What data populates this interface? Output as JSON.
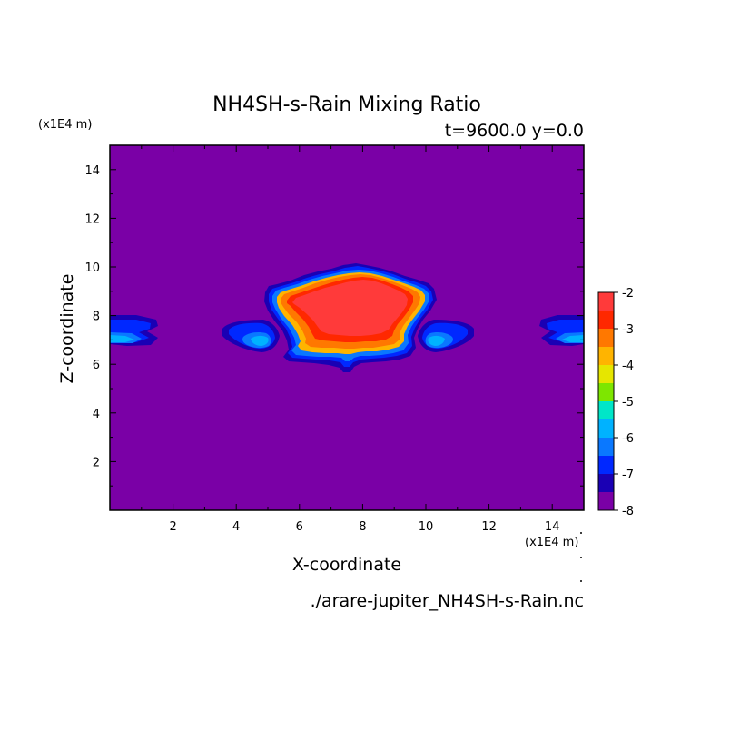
{
  "title": "NH4SH-s-Rain Mixing Ratio",
  "subtitle": "t=9600.0 y=0.0",
  "xlabel": "X-coordinate",
  "ylabel": "Z-coordinate",
  "x_multiplier": "(x1E4 m)",
  "y_multiplier": "(x1E4 m)",
  "filename": "./arare-jupiter_NH4SH-s-Rain.nc",
  "chart_data": {
    "type": "heatmap",
    "subtype": "filled-contour",
    "title": "NH4SH-s-Rain Mixing Ratio",
    "subtitle": "t=9600.0 y=0.0",
    "xlabel": "X-coordinate",
    "ylabel": "Z-coordinate",
    "x_units": "(x1E4 m)",
    "y_units": "(x1E4 m)",
    "xlim": [
      0,
      15
    ],
    "ylim": [
      0,
      15
    ],
    "x_ticks": [
      "2",
      "4",
      "6",
      "8",
      "10",
      "12",
      "14"
    ],
    "x_tick_values": [
      2,
      4,
      6,
      8,
      10,
      12,
      14
    ],
    "y_ticks": [
      "2",
      "4",
      "6",
      "8",
      "10",
      "12",
      "14"
    ],
    "y_tick_values": [
      2,
      4,
      6,
      8,
      10,
      12,
      14
    ],
    "colorbar": {
      "levels": [
        -8,
        -7.5,
        -7,
        -6.5,
        -6,
        -5.5,
        -5,
        -4.5,
        -4,
        -3.5,
        -3,
        -2.5,
        -2
      ],
      "tick_labels": [
        "-2",
        "-3",
        "-4",
        "-5",
        "-6",
        "-7",
        "-8"
      ],
      "tick_values": [
        -2,
        -3,
        -4,
        -5,
        -6,
        -7,
        -8
      ],
      "colors": [
        "#7a00a6",
        "#1a00b4",
        "#0028ff",
        "#0a78ff",
        "#00b2ff",
        "#00e6c8",
        "#7ee600",
        "#e6e600",
        "#ffb400",
        "#ff7800",
        "#ff2800",
        "#ff3a3a",
        "#ffaaaa"
      ]
    },
    "background_value": -8,
    "features": [
      {
        "name": "central cloud",
        "x_range": [
          5.0,
          10.2
        ],
        "z_range": [
          5.9,
          10.1
        ],
        "max_level": -3
      },
      {
        "name": "left side anvil",
        "x_range": [
          3.5,
          6.0
        ],
        "z_range": [
          6.6,
          7.9
        ],
        "max_level": -6.5
      },
      {
        "name": "right side anvil",
        "x_range": [
          9.5,
          12.0
        ],
        "z_range": [
          6.6,
          7.9
        ],
        "max_level": -6.5
      },
      {
        "name": "left edge anvil",
        "x_range": [
          0,
          1.6
        ],
        "z_range": [
          6.6,
          8.0
        ],
        "max_level": -6.5
      },
      {
        "name": "right edge anvil",
        "x_range": [
          13.5,
          15
        ],
        "z_range": [
          6.6,
          8.0
        ],
        "max_level": -6.5
      }
    ]
  }
}
